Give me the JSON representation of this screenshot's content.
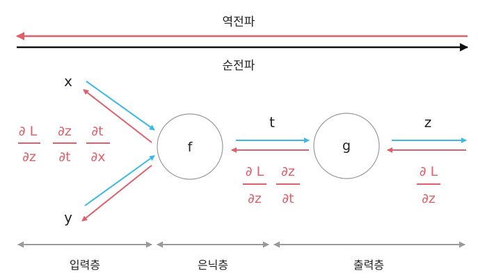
{
  "colors": {
    "backward": "#e0606a",
    "forward": "#3bb8e8",
    "main_forward": "#111111",
    "node_stroke": "#999999",
    "section": "#999999"
  },
  "top": {
    "backprop_label": "역전파",
    "forward_label": "순전파"
  },
  "inputs": {
    "x": "x",
    "y": "y"
  },
  "nodes": {
    "f": "f",
    "g": "g"
  },
  "edges": {
    "t": "t",
    "z": "z"
  },
  "input_grads": {
    "g1": {
      "num": "∂ L",
      "den": "∂z"
    },
    "g2": {
      "num": "∂z",
      "den": "∂t"
    },
    "g3": {
      "num": "∂t",
      "den": "∂x"
    }
  },
  "hidden_grads": {
    "g1": {
      "num": "∂ L",
      "den": "∂z"
    },
    "g2": {
      "num": "∂z",
      "den": "∂t"
    }
  },
  "output_grad": {
    "num": "∂ L",
    "den": "∂z"
  },
  "sections": {
    "input": "입력층",
    "hidden": "은닉층",
    "output": "출력층"
  }
}
